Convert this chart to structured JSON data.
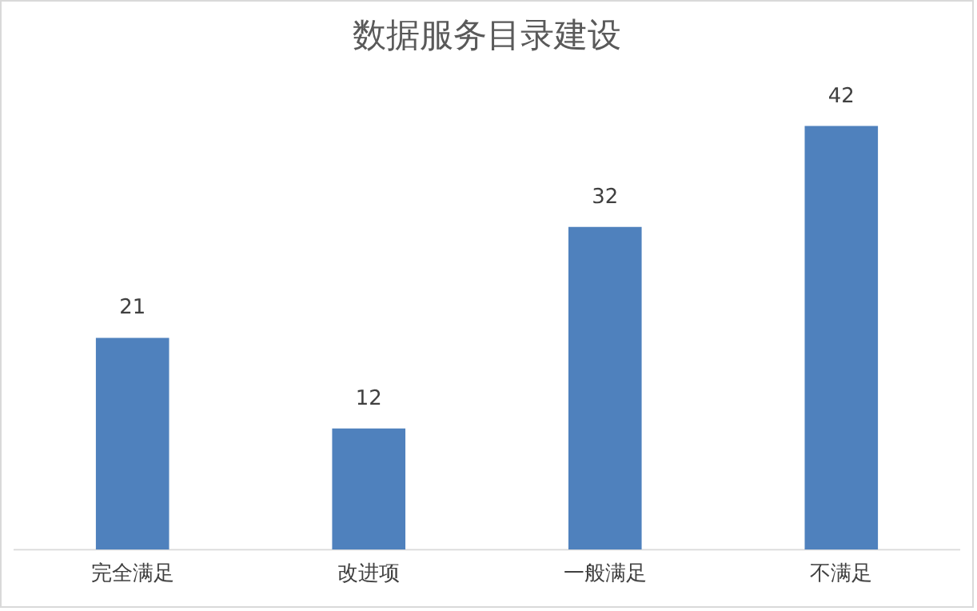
{
  "chart_data": {
    "type": "bar",
    "title": "数据服务目录建设",
    "categories": [
      "完全满足",
      "改进项",
      "一般满足",
      "不满足"
    ],
    "values": [
      21,
      12,
      32,
      42
    ],
    "color": "#4f81bd",
    "data_labels": true,
    "grid": false,
    "legend": false
  }
}
